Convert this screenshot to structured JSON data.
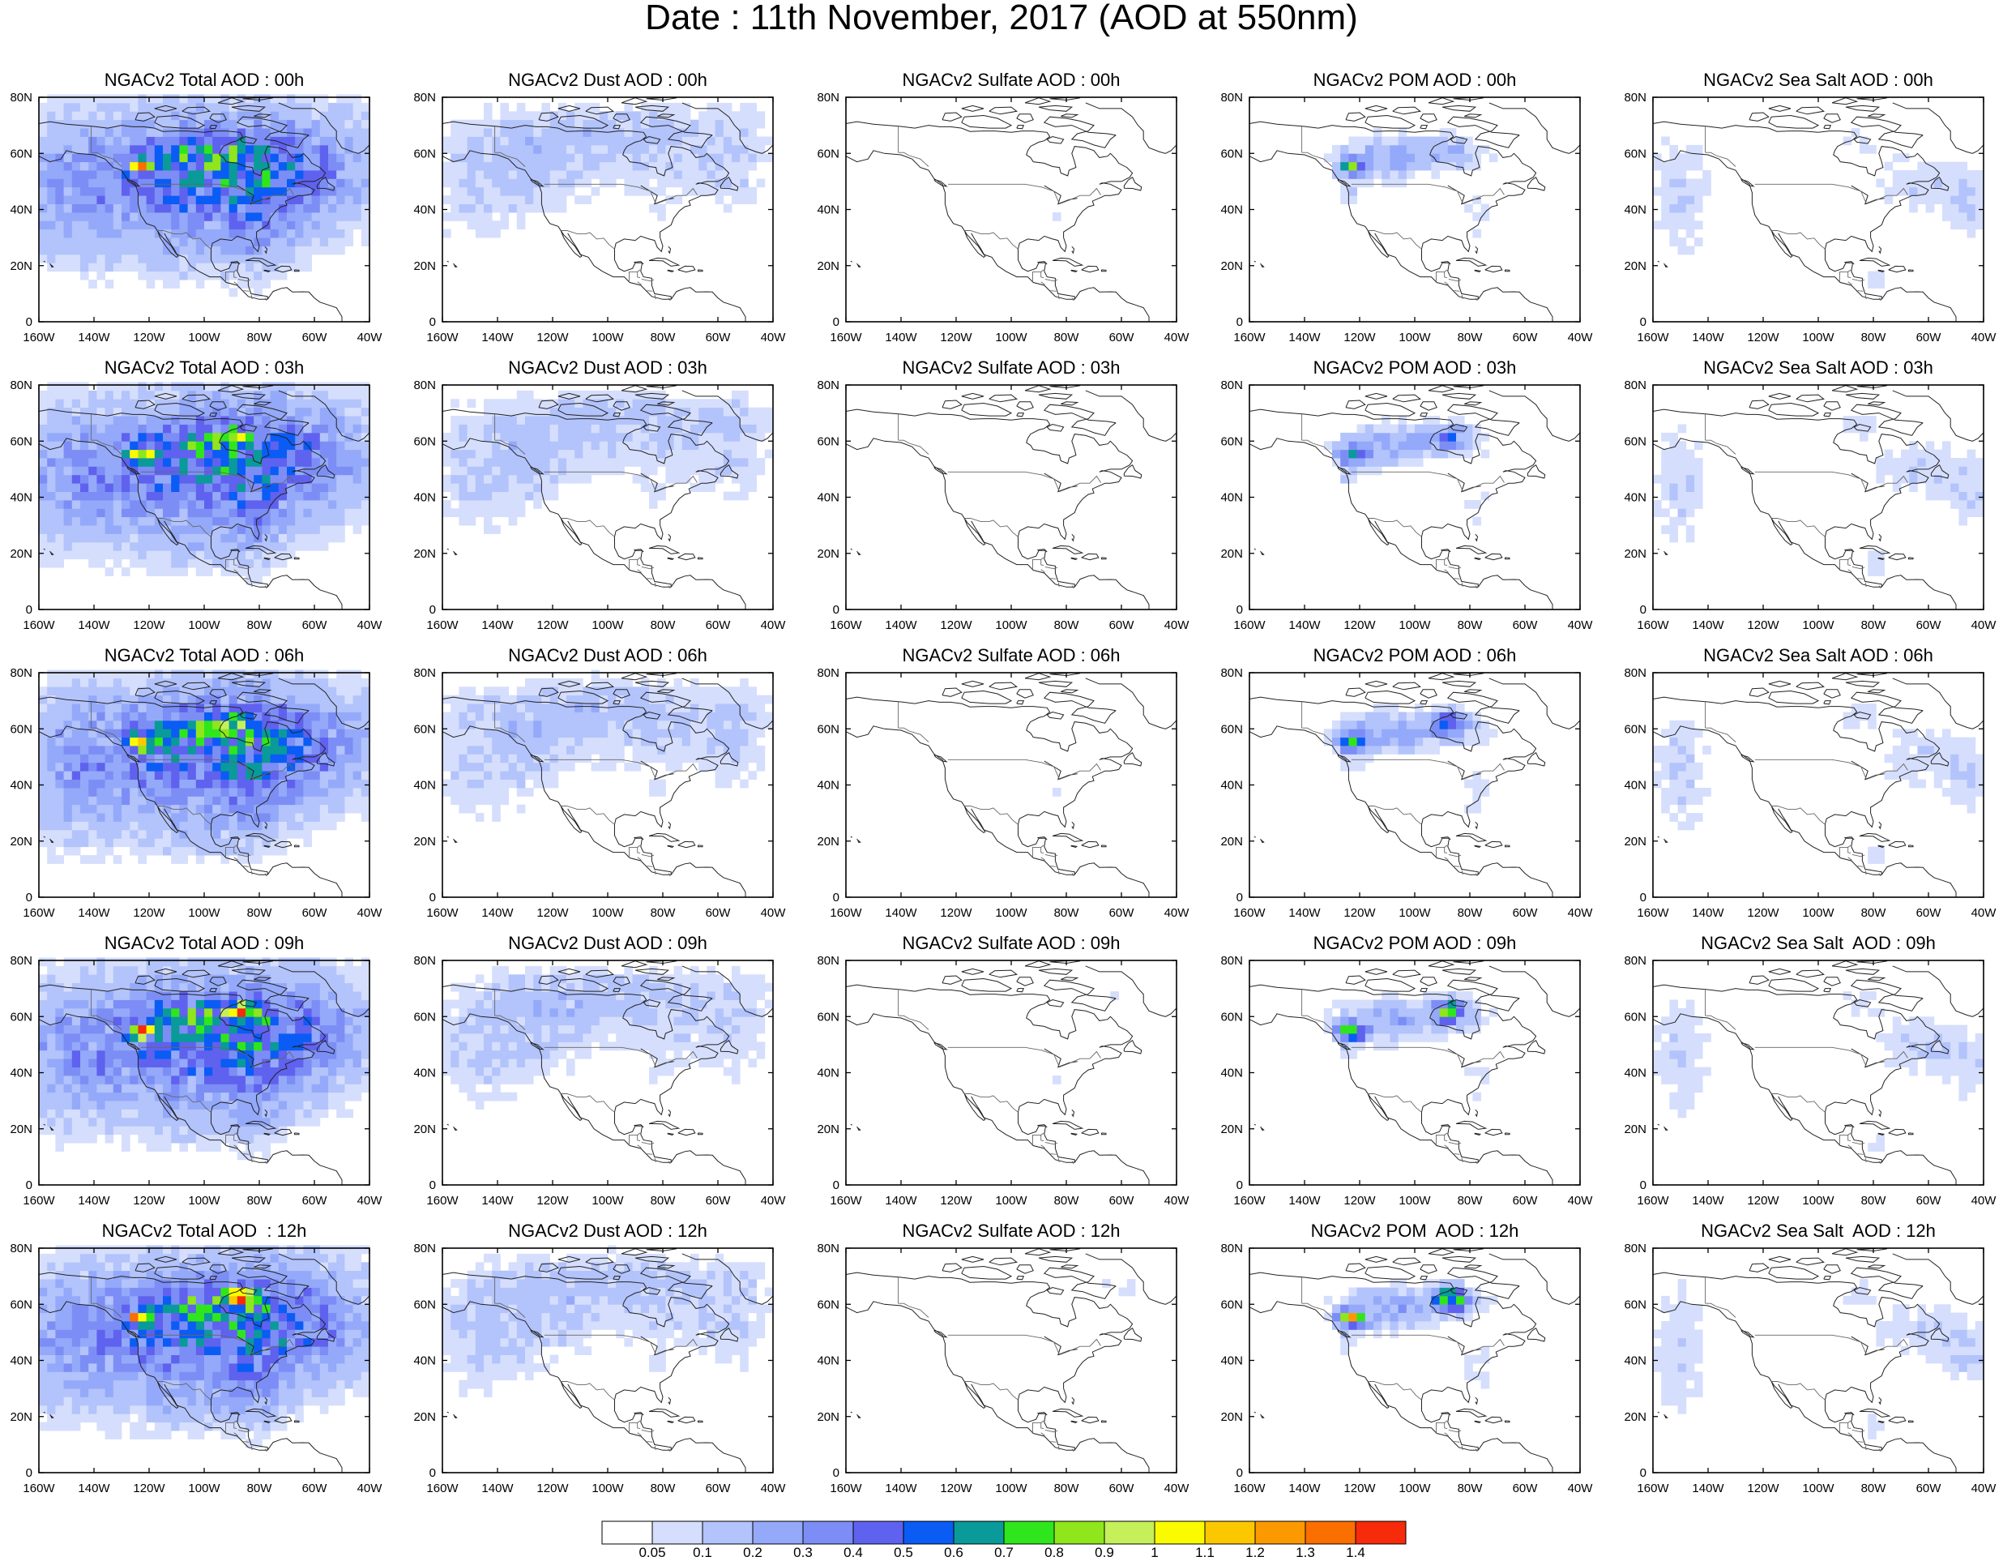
{
  "title": "Date : 11th November, 2017 (AOD at 550nm)",
  "lat_ticks": [
    "0",
    "20N",
    "40N",
    "60N",
    "80N"
  ],
  "lon_ticks": [
    "160W",
    "140W",
    "120W",
    "100W",
    "80W",
    "60W",
    "40W"
  ],
  "map_extent": {
    "lon": [
      -160,
      -40
    ],
    "lat": [
      0,
      80
    ]
  },
  "panels": [
    [
      {
        "title": "NGACv2 Total AOD : 00h",
        "kind": "total",
        "hour": 0
      },
      {
        "title": "NGACv2 Dust AOD : 00h",
        "kind": "dust",
        "hour": 0
      },
      {
        "title": "NGACv2 Sulfate AOD : 00h",
        "kind": "sulfate",
        "hour": 0
      },
      {
        "title": "NGACv2 POM AOD : 00h",
        "kind": "pom",
        "hour": 0
      },
      {
        "title": "NGACv2 Sea Salt AOD : 00h",
        "kind": "seasalt",
        "hour": 0
      }
    ],
    [
      {
        "title": "NGACv2 Total AOD : 03h",
        "kind": "total",
        "hour": 3
      },
      {
        "title": "NGACv2 Dust AOD : 03h",
        "kind": "dust",
        "hour": 3
      },
      {
        "title": "NGACv2 Sulfate AOD : 03h",
        "kind": "sulfate",
        "hour": 3
      },
      {
        "title": "NGACv2 POM AOD : 03h",
        "kind": "pom",
        "hour": 3
      },
      {
        "title": "NGACv2 Sea Salt AOD : 03h",
        "kind": "seasalt",
        "hour": 3
      }
    ],
    [
      {
        "title": "NGACv2 Total AOD : 06h",
        "kind": "total",
        "hour": 6
      },
      {
        "title": "NGACv2 Dust AOD : 06h",
        "kind": "dust",
        "hour": 6
      },
      {
        "title": "NGACv2 Sulfate AOD : 06h",
        "kind": "sulfate",
        "hour": 6
      },
      {
        "title": "NGACv2 POM AOD : 06h",
        "kind": "pom",
        "hour": 6
      },
      {
        "title": "NGACv2 Sea Salt AOD : 06h",
        "kind": "seasalt",
        "hour": 6
      }
    ],
    [
      {
        "title": "NGACv2 Total AOD : 09h",
        "kind": "total",
        "hour": 9
      },
      {
        "title": "NGACv2 Dust AOD : 09h",
        "kind": "dust",
        "hour": 9
      },
      {
        "title": "NGACv2 Sulfate AOD : 09h",
        "kind": "sulfate",
        "hour": 9
      },
      {
        "title": "NGACv2 POM AOD : 09h",
        "kind": "pom",
        "hour": 9
      },
      {
        "title": "NGACv2 Sea Salt  AOD : 09h",
        "kind": "seasalt",
        "hour": 9
      }
    ],
    [
      {
        "title": "NGACv2 Total AOD  : 12h",
        "kind": "total",
        "hour": 12
      },
      {
        "title": "NGACv2 Dust AOD : 12h",
        "kind": "dust",
        "hour": 12
      },
      {
        "title": "NGACv2 Sulfate AOD : 12h",
        "kind": "sulfate",
        "hour": 12
      },
      {
        "title": "NGACv2 POM  AOD : 12h",
        "kind": "pom",
        "hour": 12
      },
      {
        "title": "NGACv2 Sea Salt  AOD : 12h",
        "kind": "seasalt",
        "hour": 12
      }
    ]
  ],
  "colorbar": {
    "labels": [
      "0.05",
      "0.1",
      "0.2",
      "0.3",
      "0.4",
      "0.5",
      "0.6",
      "0.7",
      "0.8",
      "0.9",
      "1",
      "1.1",
      "1.2",
      "1.3",
      "1.4"
    ],
    "colors": [
      "#ffffff",
      "#d5defc",
      "#b3c3fb",
      "#94a9f9",
      "#7c8ef5",
      "#5f62ee",
      "#0a5cf5",
      "#0a9a9a",
      "#2fe61c",
      "#8fe61c",
      "#c6f05a",
      "#fbfb00",
      "#fbc800",
      "#fb9a00",
      "#fb6e00",
      "#f72a0a"
    ]
  }
}
